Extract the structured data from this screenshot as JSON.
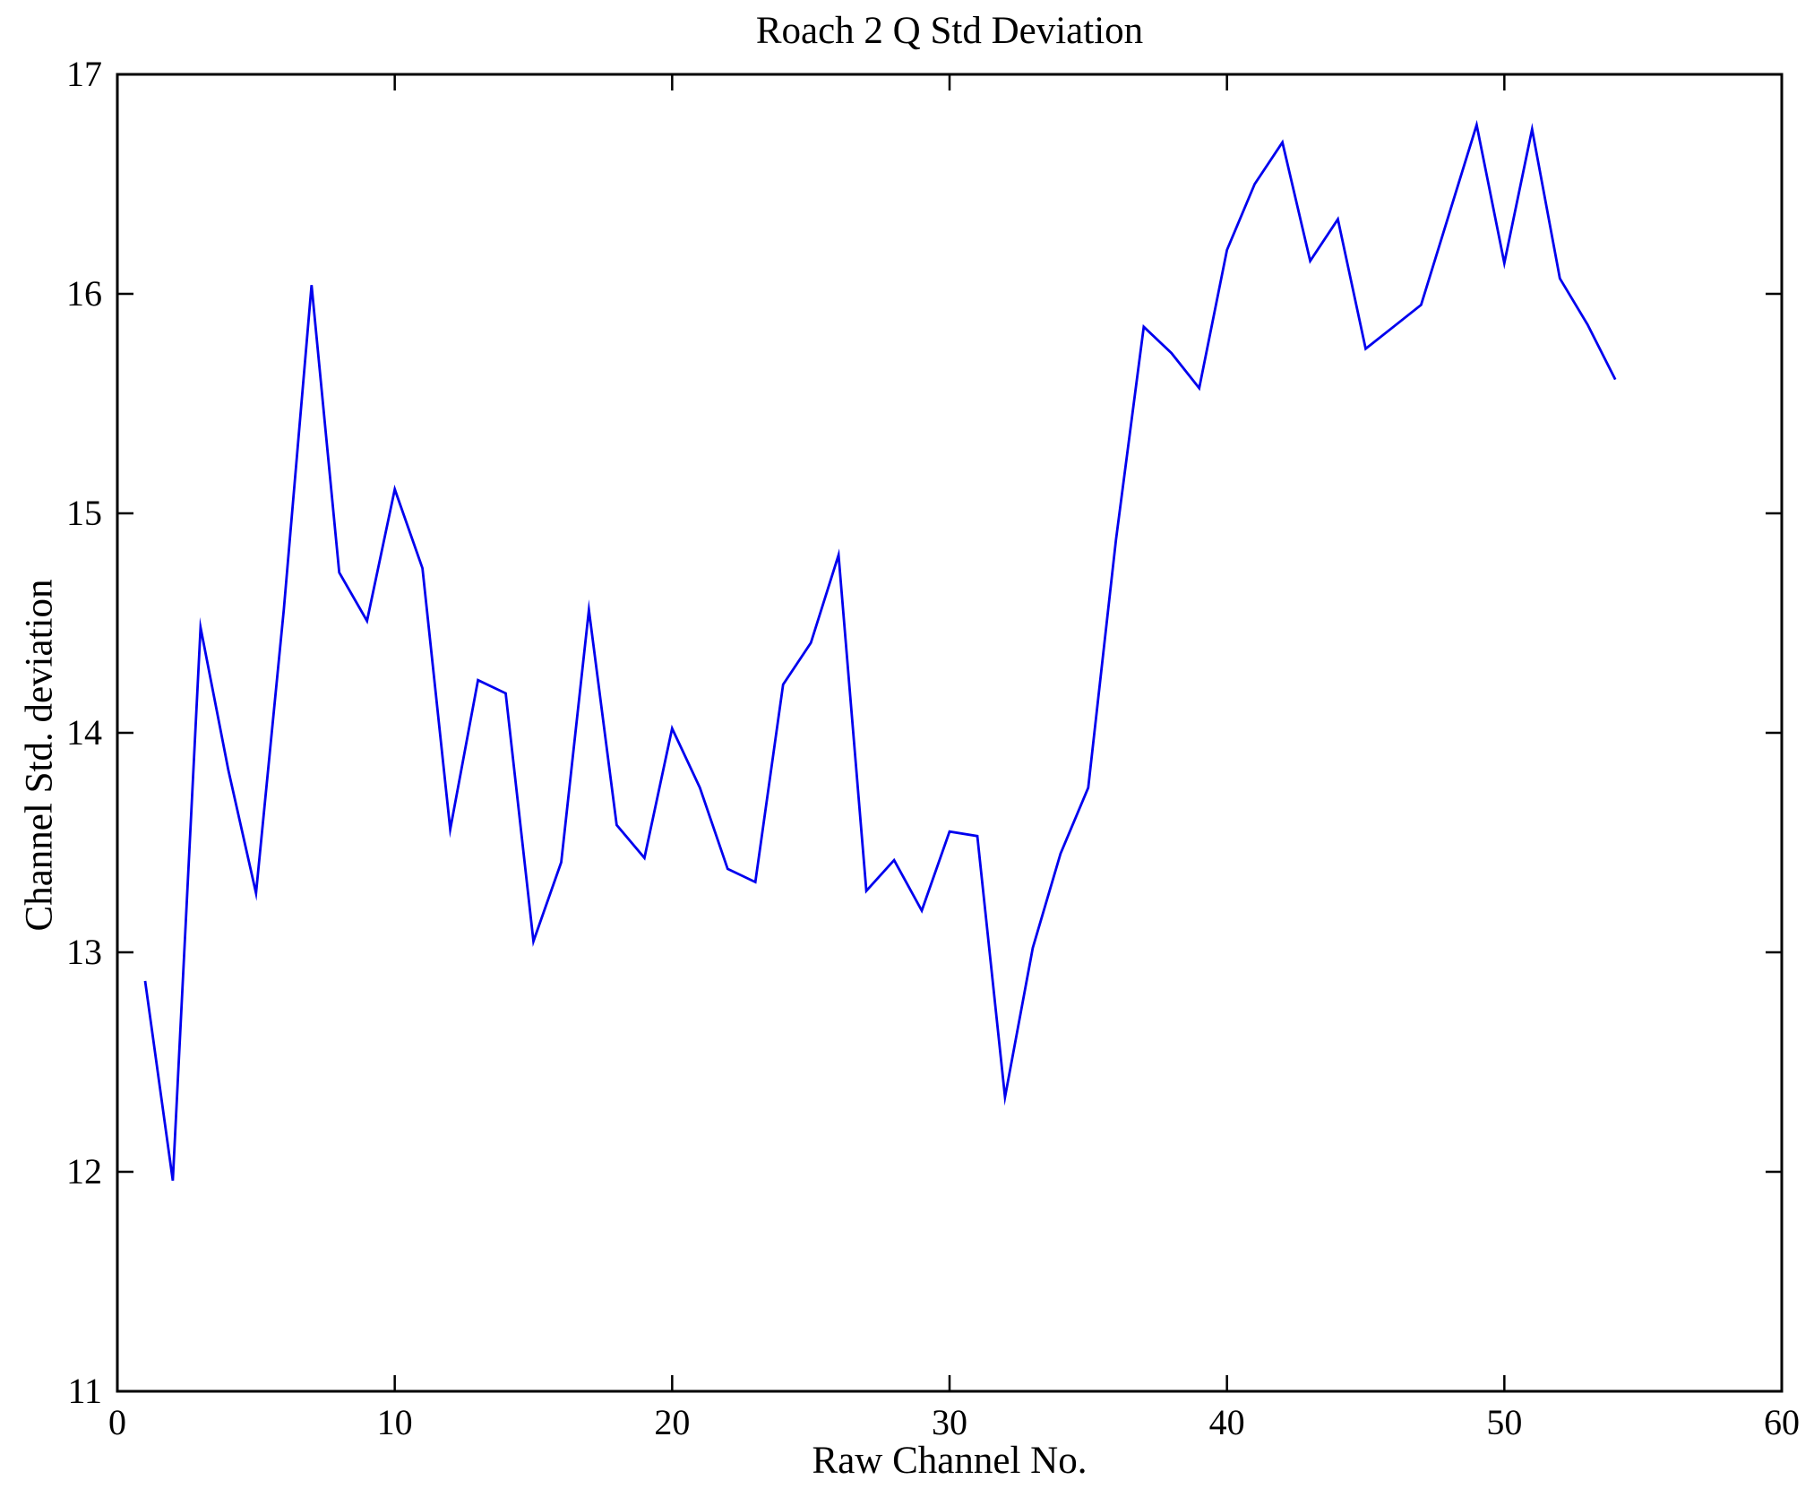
{
  "figure": {
    "background": "#ffffff",
    "axis_color": "#000000"
  },
  "chart_data": {
    "type": "line",
    "title": "Roach 2 Q Std Deviation",
    "xlabel": "Raw Channel No.",
    "ylabel": "Channel Std. deviation",
    "xlim": [
      0,
      60
    ],
    "ylim": [
      11,
      17
    ],
    "x_ticks": [
      0,
      10,
      20,
      30,
      40,
      50,
      60
    ],
    "y_ticks": [
      11,
      12,
      13,
      14,
      15,
      16,
      17
    ],
    "grid": false,
    "legend": null,
    "line_color": "#0000EE",
    "x": [
      1,
      2,
      3,
      4,
      5,
      6,
      7,
      8,
      9,
      10,
      11,
      12,
      13,
      14,
      15,
      16,
      17,
      18,
      19,
      20,
      21,
      22,
      23,
      24,
      25,
      26,
      27,
      28,
      29,
      30,
      31,
      32,
      33,
      34,
      35,
      36,
      37,
      38,
      39,
      40,
      41,
      42,
      43,
      44,
      45,
      46,
      47,
      48,
      49,
      50,
      51,
      52,
      53,
      54
    ],
    "values": [
      12.87,
      11.96,
      14.48,
      13.83,
      13.27,
      14.56,
      16.04,
      14.73,
      14.51,
      15.11,
      14.75,
      13.56,
      14.24,
      14.18,
      13.05,
      13.41,
      14.56,
      13.58,
      13.43,
      14.02,
      13.75,
      13.38,
      13.32,
      14.22,
      14.41,
      14.81,
      13.28,
      13.42,
      13.19,
      13.55,
      13.53,
      12.34,
      13.02,
      13.45,
      13.75,
      14.88,
      15.85,
      15.73,
      15.57,
      16.2,
      16.5,
      16.69,
      16.15,
      16.34,
      15.75,
      15.85,
      15.95,
      16.36,
      16.77,
      16.14,
      16.75,
      16.07,
      15.86,
      15.61
    ]
  }
}
